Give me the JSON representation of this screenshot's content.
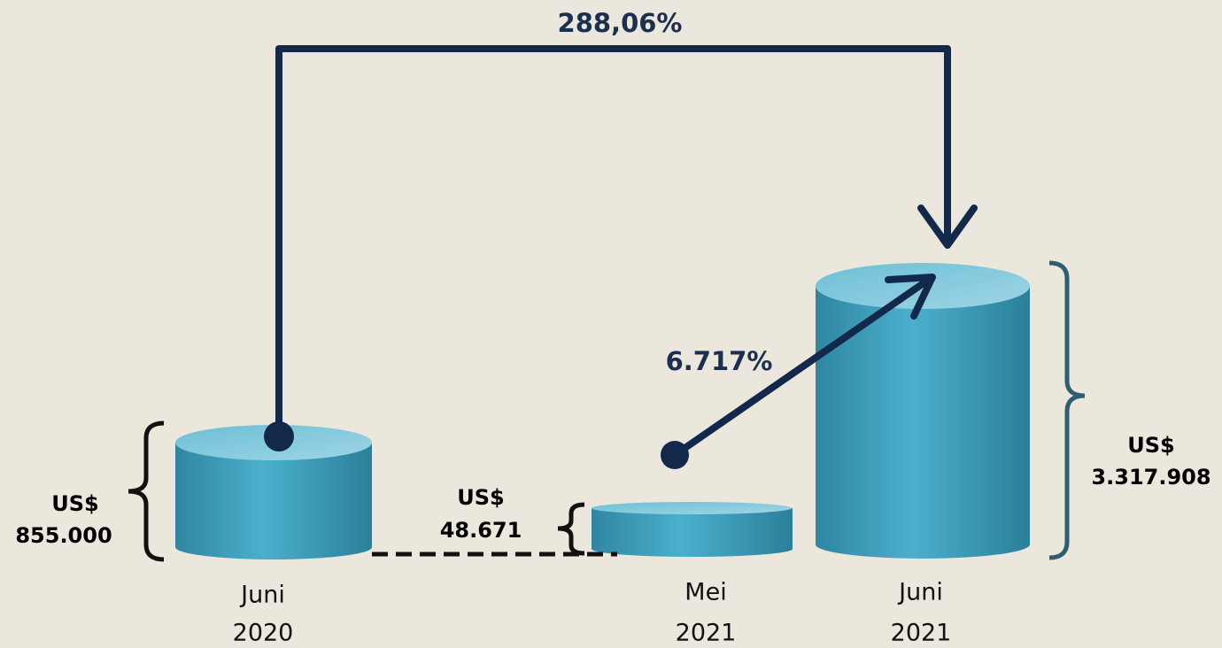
{
  "changes": [
    {
      "label": "288,06%"
    },
    {
      "label": "6.717%"
    }
  ],
  "cylinders": [
    {
      "period": [
        "Juni",
        "2020"
      ],
      "value": [
        "US$",
        "855.000"
      ]
    },
    {
      "period": [
        "Mei",
        "2021"
      ],
      "value": [
        "US$",
        "48.671"
      ]
    },
    {
      "period": [
        "Juni",
        "2021"
      ],
      "value": [
        "US$",
        "3.317.908"
      ]
    }
  ]
}
